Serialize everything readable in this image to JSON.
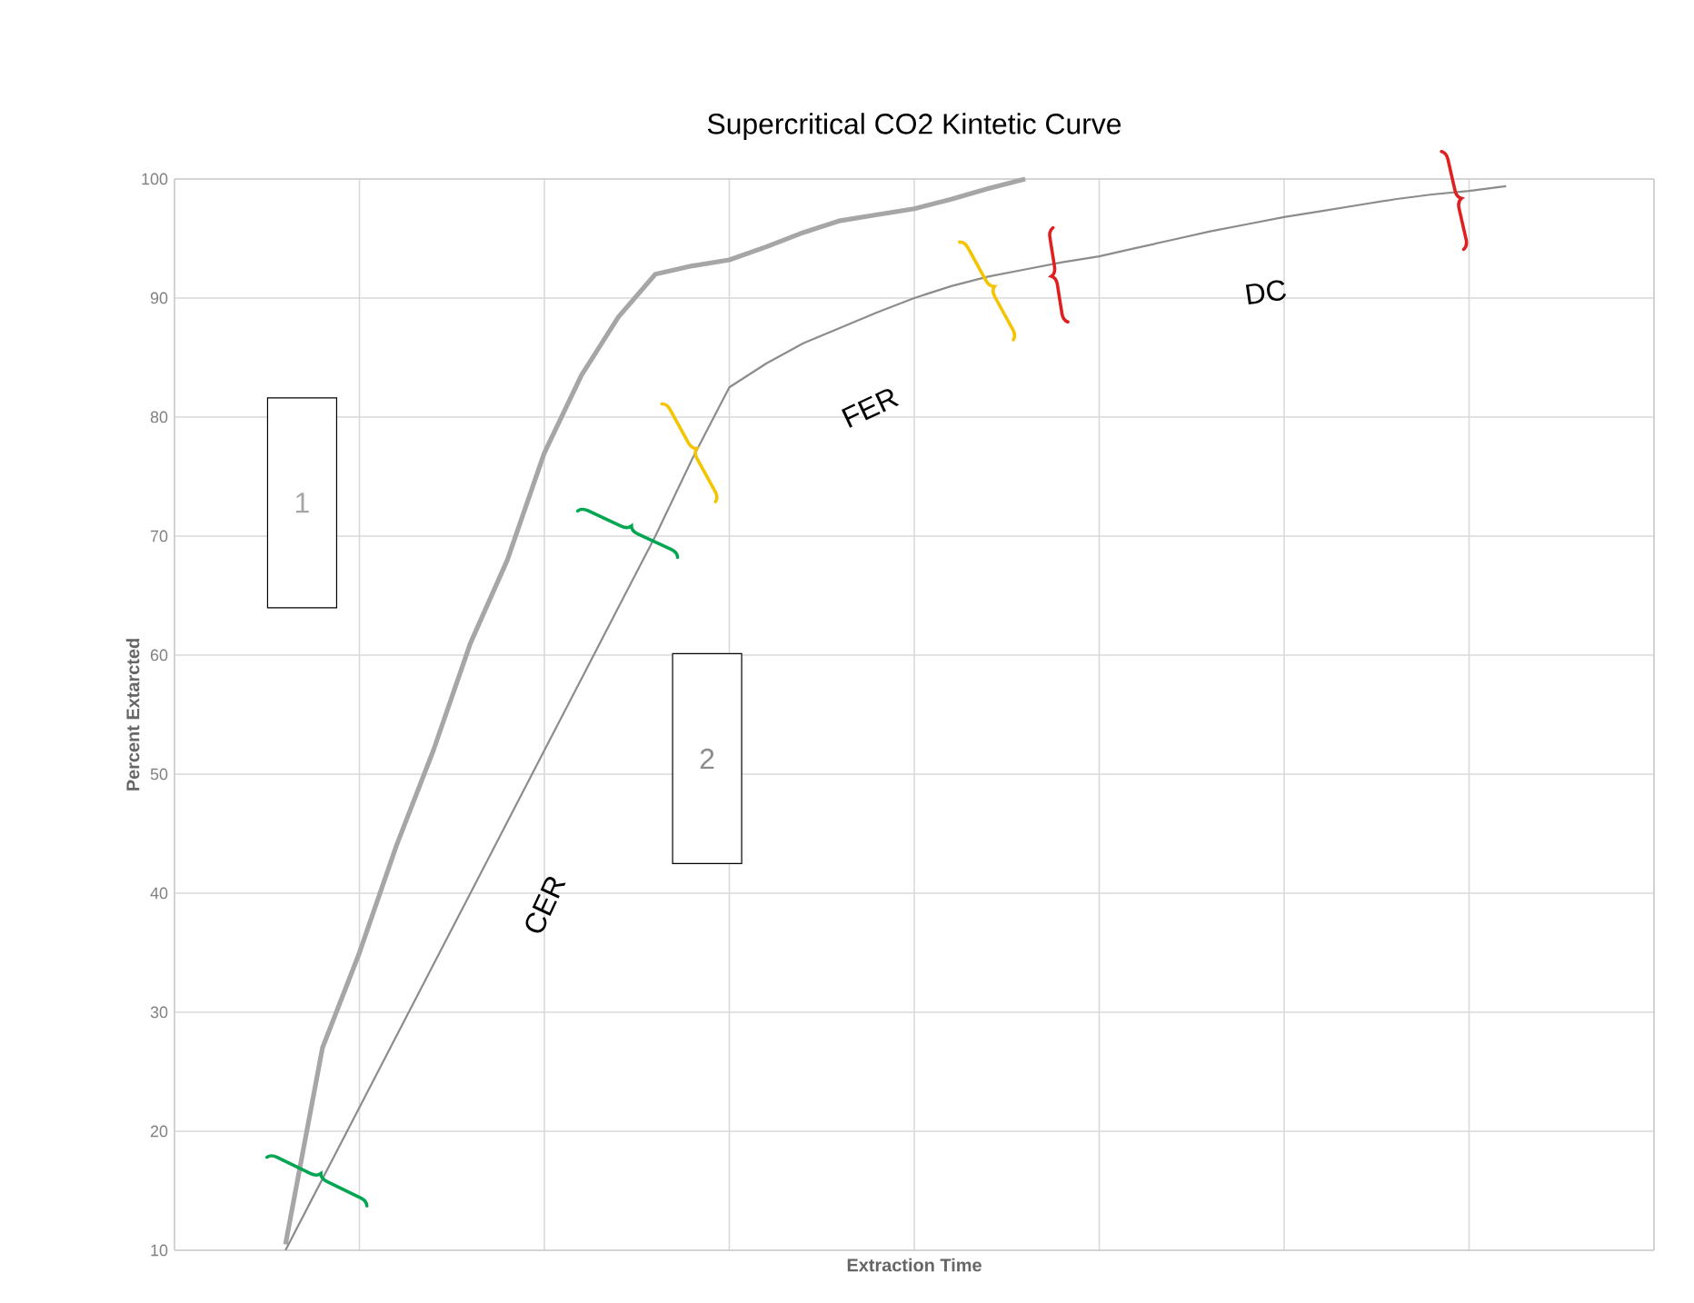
{
  "chart_data": {
    "type": "line",
    "title": "Supercritical CO2 Kintetic Curve",
    "xlabel": "Extraction Time",
    "ylabel": "Percent Extarcted",
    "categories": [
      null,
      null,
      null,
      null,
      null,
      null,
      null,
      null,
      null,
      null,
      null,
      null,
      null,
      null,
      null,
      null,
      null,
      null,
      null,
      null,
      null,
      null,
      null,
      null,
      null,
      null,
      null,
      null,
      null,
      null,
      null,
      null,
      null,
      null,
      null,
      null,
      null,
      null,
      null,
      null,
      null
    ],
    "ylim": [
      10,
      100
    ],
    "yticks": [
      10,
      20,
      30,
      40,
      50,
      60,
      70,
      80,
      90,
      100
    ],
    "grid": true,
    "tick_labels": "y",
    "series": [
      {
        "name": "1",
        "color": "#a6a6a6",
        "values": [
          null,
          null,
          null,
          10.5,
          27,
          35,
          44,
          52,
          61,
          68,
          77,
          83.5,
          88.4,
          92,
          92.7,
          93.2,
          94.3,
          95.5,
          96.5,
          97,
          97.5,
          98.3,
          99.2,
          100,
          null,
          null,
          null,
          null,
          null,
          null,
          null,
          null,
          null,
          null,
          null,
          null,
          null,
          null,
          null,
          null,
          null
        ]
      },
      {
        "name": "2",
        "color": "#8c8c8c",
        "values": [
          null,
          null,
          null,
          10,
          16,
          22,
          28,
          34,
          40,
          46,
          52,
          58,
          64,
          70,
          76.5,
          82.5,
          84.5,
          86.2,
          87.5,
          88.8,
          90,
          91,
          91.8,
          92.4,
          93,
          93.5,
          94.2,
          94.9,
          95.6,
          96.2,
          96.8,
          97.3,
          97.8,
          98.3,
          98.7,
          99,
          99.4,
          null,
          null,
          null,
          null
        ]
      }
    ],
    "annotations": [
      "CER",
      "FER",
      "DC"
    ]
  }
}
